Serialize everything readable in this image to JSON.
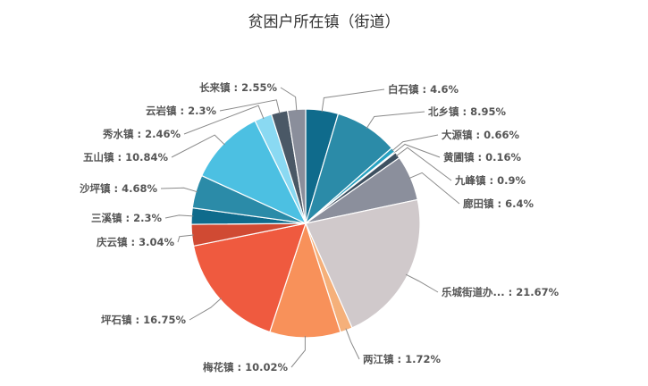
{
  "chart_data": {
    "type": "pie",
    "title": "贫困户所在镇（街道）",
    "slices": [
      {
        "label": "白石镇",
        "value": 4.6,
        "display": "4.6%",
        "color": "#0f6b8c"
      },
      {
        "label": "北乡镇",
        "value": 8.95,
        "display": "8.95%",
        "color": "#2b8ba8"
      },
      {
        "label": "大源镇",
        "value": 0.66,
        "display": "0.66%",
        "color": "#27a1c1"
      },
      {
        "label": "黄圃镇",
        "value": 0.16,
        "display": "0.16%",
        "color": "#4fc3e5"
      },
      {
        "label": "九峰镇",
        "value": 0.9,
        "display": "0.9%",
        "color": "#3e5060"
      },
      {
        "label": "廊田镇",
        "value": 6.4,
        "display": "6.4%",
        "color": "#8b8f9c"
      },
      {
        "label": "乐城街道办...",
        "value": 21.67,
        "display": "21.67%",
        "color": "#d0c9cb"
      },
      {
        "label": "两江镇",
        "value": 1.72,
        "display": "1.72%",
        "color": "#f5b07a"
      },
      {
        "label": "梅花镇",
        "value": 10.02,
        "display": "10.02%",
        "color": "#f8915a"
      },
      {
        "label": "坪石镇",
        "value": 16.75,
        "display": "16.75%",
        "color": "#ef5a3f"
      },
      {
        "label": "庆云镇",
        "value": 3.04,
        "display": "3.04%",
        "color": "#d04a33"
      },
      {
        "label": "三溪镇",
        "value": 2.3,
        "display": "2.3%",
        "color": "#0f6b8c"
      },
      {
        "label": "沙坪镇",
        "value": 4.68,
        "display": "4.68%",
        "color": "#2b8ba8"
      },
      {
        "label": "五山镇",
        "value": 10.84,
        "display": "10.84%",
        "color": "#4cc0e2"
      },
      {
        "label": "秀水镇",
        "value": 2.46,
        "display": "2.46%",
        "color": "#8ad9f2"
      },
      {
        "label": "云岩镇",
        "value": 2.3,
        "display": "2.3%",
        "color": "#4a5866"
      },
      {
        "label": "长来镇",
        "value": 2.55,
        "display": "2.55%",
        "color": "#8a8e9b"
      }
    ]
  }
}
